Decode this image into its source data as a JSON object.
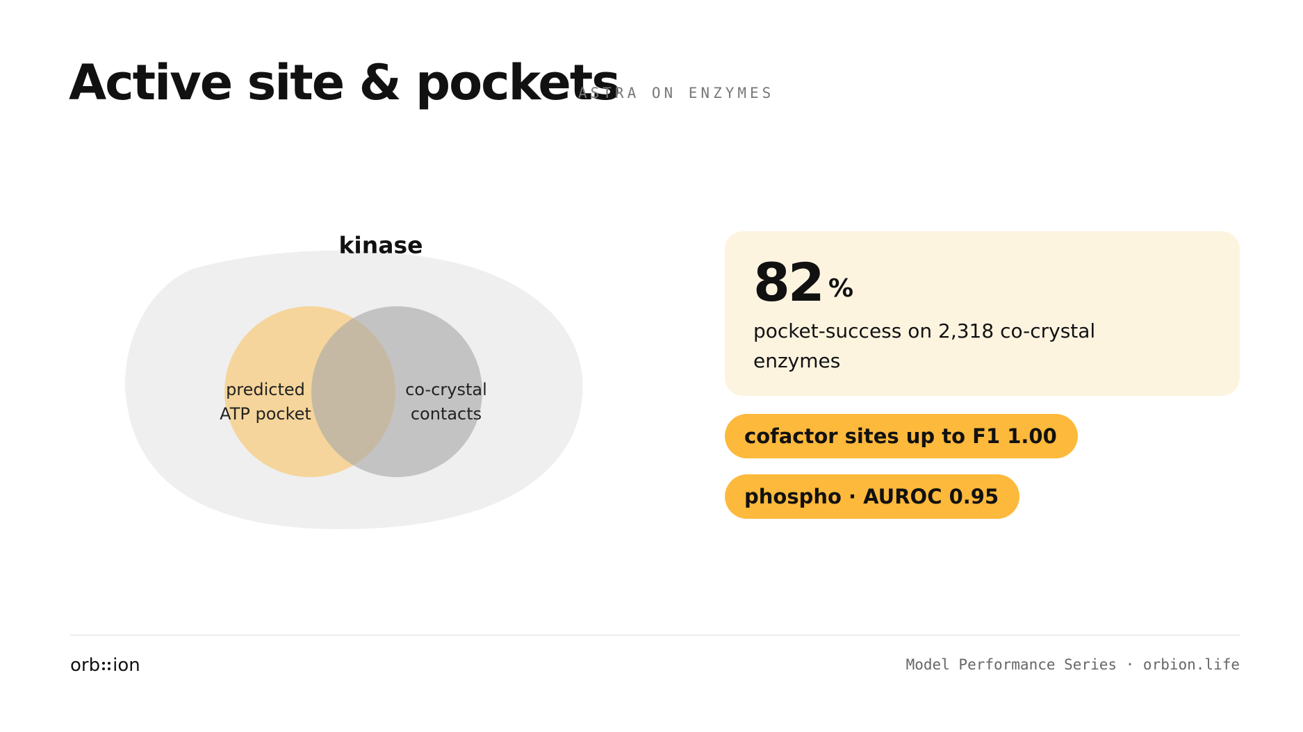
{
  "header": {
    "title": "Active site & pockets",
    "subtitle": "ASTRA ON ENZYMES"
  },
  "diagram": {
    "container_label": "kinase",
    "sets": [
      {
        "lines": [
          "predicted",
          "ATP pocket"
        ]
      },
      {
        "lines": [
          "co-crystal",
          "contacts"
        ]
      }
    ]
  },
  "stat": {
    "value": "82",
    "unit": "%",
    "description": "pocket-success on 2,318 co-crystal enzymes"
  },
  "badges": [
    "cofactor sites up to F1 1.00",
    "phospho · AUROC 0.95"
  ],
  "footer": {
    "logo": [
      "orb",
      "ion"
    ],
    "caption": "Model Performance Series · orbion.life"
  }
}
